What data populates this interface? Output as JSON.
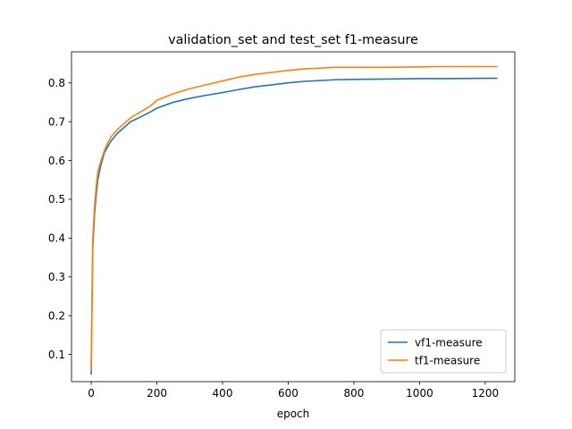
{
  "chart_data": {
    "type": "line",
    "title": "validation_set and test_set f1-measure",
    "xlabel": "epoch",
    "ylabel": "",
    "xlim": [
      -60,
      1290
    ],
    "ylim": [
      0.03,
      0.88
    ],
    "xticks": [
      0,
      200,
      400,
      600,
      800,
      1000,
      1200
    ],
    "yticks": [
      0.1,
      0.2,
      0.3,
      0.4,
      0.5,
      0.6,
      0.7,
      0.8
    ],
    "grid": false,
    "legend_position": "lower-right",
    "series": [
      {
        "name": "vf1-measure",
        "color": "#1f77b4",
        "x": [
          0,
          2,
          5,
          10,
          15,
          20,
          30,
          40,
          50,
          60,
          80,
          100,
          120,
          150,
          180,
          200,
          250,
          300,
          350,
          400,
          450,
          500,
          550,
          600,
          650,
          700,
          740,
          800,
          900,
          1000,
          1100,
          1200,
          1235
        ],
        "y": [
          0.05,
          0.2,
          0.38,
          0.46,
          0.51,
          0.55,
          0.59,
          0.62,
          0.635,
          0.65,
          0.67,
          0.685,
          0.7,
          0.712,
          0.725,
          0.735,
          0.75,
          0.76,
          0.768,
          0.775,
          0.783,
          0.79,
          0.795,
          0.8,
          0.804,
          0.806,
          0.808,
          0.809,
          0.81,
          0.811,
          0.811,
          0.812,
          0.812
        ]
      },
      {
        "name": "tf1-measure",
        "color": "#ff7f0e",
        "x": [
          0,
          2,
          5,
          10,
          15,
          20,
          30,
          40,
          50,
          60,
          80,
          100,
          120,
          150,
          180,
          200,
          250,
          300,
          350,
          400,
          450,
          500,
          550,
          600,
          650,
          700,
          740,
          800,
          900,
          1000,
          1050,
          1100,
          1200,
          1235
        ],
        "y": [
          0.06,
          0.22,
          0.4,
          0.48,
          0.53,
          0.57,
          0.6,
          0.625,
          0.645,
          0.66,
          0.68,
          0.695,
          0.71,
          0.725,
          0.74,
          0.755,
          0.772,
          0.785,
          0.795,
          0.805,
          0.815,
          0.822,
          0.827,
          0.832,
          0.836,
          0.838,
          0.84,
          0.84,
          0.84,
          0.841,
          0.842,
          0.842,
          0.842,
          0.842
        ]
      }
    ]
  }
}
